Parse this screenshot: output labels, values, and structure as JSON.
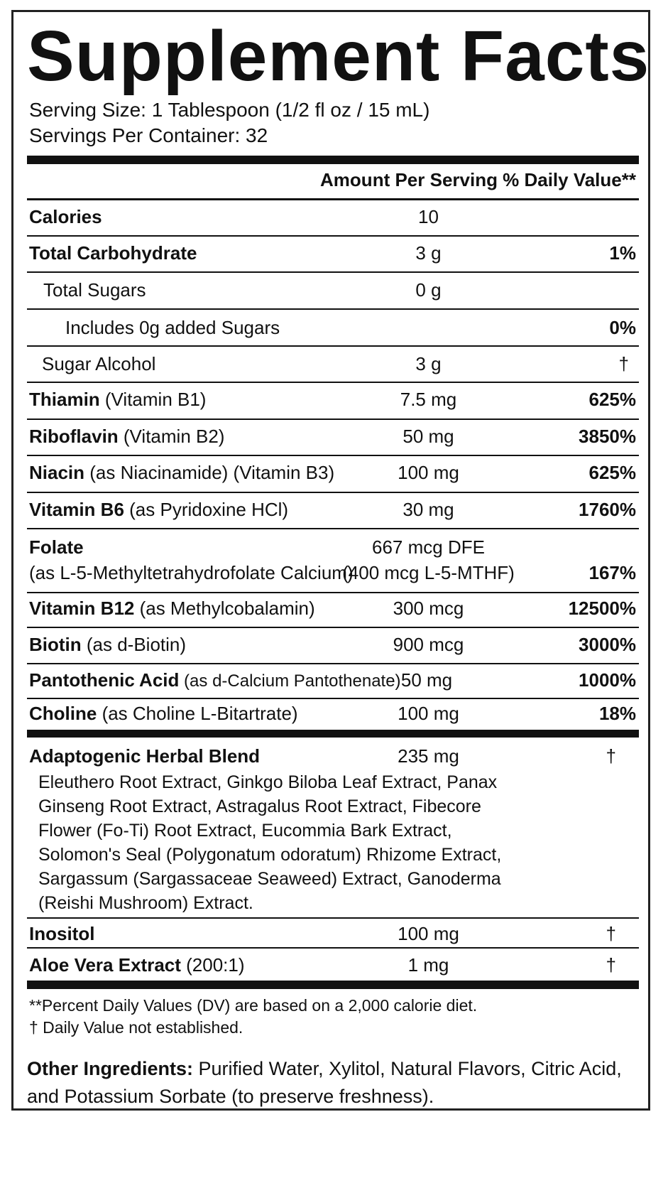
{
  "title": "Supplement Facts",
  "serving_size": "Serving Size: 1 Tablespoon (1/2 fl oz / 15 mL)",
  "servings_per_container": "Servings Per Container: 32",
  "header": {
    "amount": "Amount Per Serving",
    "dv": "% Daily Value**"
  },
  "rows": [
    {
      "name": "Calories",
      "detail": "",
      "amount": "10",
      "dv": ""
    },
    {
      "name": "Total Carbohydrate",
      "detail": "",
      "amount": "3 g",
      "dv": "1%"
    },
    {
      "name": "",
      "detail": "Total Sugars",
      "amount": "0 g",
      "dv": ""
    },
    {
      "name": "",
      "detail": "Includes 0g added Sugars",
      "amount": "",
      "dv": "0%"
    },
    {
      "name": "",
      "detail": "Sugar Alcohol",
      "amount": "3 g",
      "dv": "†"
    },
    {
      "name": "Thiamin",
      "detail": " (Vitamin B1)",
      "amount": "7.5 mg",
      "dv": "625%"
    },
    {
      "name": "Riboflavin",
      "detail": " (Vitamin B2)",
      "amount": "50 mg",
      "dv": "3850%"
    },
    {
      "name": "Niacin",
      "detail": " (as Niacinamide) (Vitamin B3)",
      "amount": "100 mg",
      "dv": "625%"
    },
    {
      "name": "Vitamin B6",
      "detail": " (as Pyridoxine HCl)",
      "amount": "30 mg",
      "dv": "1760%"
    },
    {
      "name": "Folate",
      "detail": "(as L-5-Methyltetrahydrofolate Calcium)",
      "amount": "667 mcg DFE",
      "amount2": "(400 mcg L-5-MTHF)",
      "dv": "167%"
    },
    {
      "name": "Vitamin B12",
      "detail": " (as Methylcobalamin)",
      "amount": "300 mcg",
      "dv": "12500%"
    },
    {
      "name": "Biotin",
      "detail": " (as d-Biotin)",
      "amount": "900 mcg",
      "dv": "3000%"
    },
    {
      "name": "Pantothenic Acid",
      "detail": " (as d-Calcium Pantothenate)",
      "amount": "50 mg",
      "dv": "1000%"
    },
    {
      "name": "Choline",
      "detail": " (as Choline L-Bitartrate)",
      "amount": "100 mg",
      "dv": "18%"
    }
  ],
  "blend": {
    "name": "Adaptogenic Herbal Blend",
    "amount": "235 mg",
    "dv": "†",
    "lines": [
      "Eleuthero Root Extract, Ginkgo Biloba Leaf Extract, Panax",
      "Ginseng Root Extract, Astragalus Root Extract, Fibecore",
      "Flower (Fo-Ti) Root Extract, Eucommia Bark Extract,",
      "Solomon's Seal (Polygonatum odoratum) Rhizome Extract,",
      "Sargassum (Sargassaceae Seaweed) Extract, Ganoderma",
      "(Reishi Mushroom) Extract."
    ]
  },
  "inositol": {
    "name": "Inositol",
    "amount": "100 mg",
    "dv": "†"
  },
  "aloe": {
    "name": "Aloe Vera Extract",
    "detail": " (200:1)",
    "amount": "1 mg",
    "dv": "†"
  },
  "footnotes": [
    "**Percent Daily Values (DV) are based on a 2,000 calorie diet.",
    "† Daily Value not established."
  ],
  "other": {
    "label": "Other Ingredients:",
    "text": " Purified Water, Xylitol, Natural Flavors, Citric Acid, and Potassium Sorbate (to preserve freshness)."
  }
}
